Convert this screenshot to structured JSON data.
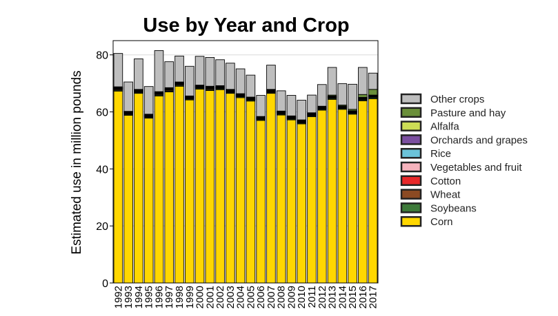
{
  "chart_data": {
    "type": "bar",
    "stacked": true,
    "title": "Use by Year and Crop",
    "xlabel": "",
    "ylabel": "Estimated use in million pounds",
    "ylim": [
      0,
      85
    ],
    "yticks": [
      0,
      20,
      40,
      60,
      80
    ],
    "grid": "horizontal",
    "legend_position": "right",
    "categories": [
      "1992",
      "1993",
      "1994",
      "1995",
      "1996",
      "1997",
      "1998",
      "1999",
      "2000",
      "2001",
      "2002",
      "2003",
      "2004",
      "2005",
      "2006",
      "2007",
      "2008",
      "2009",
      "2010",
      "2011",
      "2012",
      "2013",
      "2014",
      "2015",
      "2016",
      "2017"
    ],
    "series": [
      {
        "name": "Corn",
        "color": "#FFD700",
        "values": [
          67.3,
          58.8,
          66.5,
          57.8,
          65.6,
          67.0,
          69.0,
          64.2,
          68.0,
          67.5,
          67.8,
          66.5,
          65.0,
          63.8,
          57.0,
          66.5,
          58.9,
          57.2,
          55.8,
          58.3,
          60.6,
          64.4,
          60.9,
          59.2,
          63.9,
          64.6
        ]
      },
      {
        "name": "Soybeans",
        "color": "#3E7A3A",
        "values": [
          0.3,
          0.3,
          0.3,
          0.3,
          0.3,
          0.3,
          0.3,
          0.3,
          0.3,
          0.3,
          0.3,
          0.3,
          0.3,
          0.3,
          0.3,
          0.3,
          0.3,
          0.3,
          0.3,
          0.3,
          0.3,
          0.3,
          0.3,
          0.3,
          0.3,
          0.4
        ]
      },
      {
        "name": "Wheat",
        "color": "#8B4A23",
        "values": [
          0.3,
          0.2,
          0.2,
          0.2,
          0.3,
          0.3,
          0.3,
          0.2,
          0.2,
          0.3,
          0.2,
          0.2,
          0.2,
          0.2,
          0.2,
          0.2,
          0.2,
          0.2,
          0.2,
          0.2,
          0.2,
          0.2,
          0.2,
          0.2,
          0.2,
          0.2
        ]
      },
      {
        "name": "Cotton",
        "color": "#E8282A",
        "values": [
          0.1,
          0.1,
          0.1,
          0.1,
          0.1,
          0.1,
          0.1,
          0.1,
          0.1,
          0.1,
          0.1,
          0.1,
          0.1,
          0.1,
          0.1,
          0.1,
          0.1,
          0.1,
          0.1,
          0.1,
          0.1,
          0.1,
          0.1,
          0.1,
          0.1,
          0.1
        ]
      },
      {
        "name": "Vegetables and fruit",
        "color": "#F6B3BD",
        "values": [
          0.2,
          0.2,
          0.2,
          0.2,
          0.2,
          0.2,
          0.2,
          0.2,
          0.2,
          0.2,
          0.2,
          0.2,
          0.2,
          0.2,
          0.2,
          0.2,
          0.2,
          0.2,
          0.2,
          0.2,
          0.2,
          0.2,
          0.2,
          0.2,
          0.2,
          0.2
        ]
      },
      {
        "name": "Rice",
        "color": "#6BC3D9",
        "values": [
          0.1,
          0.1,
          0.1,
          0.1,
          0.1,
          0.1,
          0.1,
          0.1,
          0.1,
          0.1,
          0.1,
          0.1,
          0.1,
          0.1,
          0.1,
          0.1,
          0.1,
          0.1,
          0.1,
          0.1,
          0.1,
          0.1,
          0.1,
          0.1,
          0.1,
          0.1
        ]
      },
      {
        "name": "Orchards and grapes",
        "color": "#7B4FA0",
        "values": [
          0.1,
          0.1,
          0.1,
          0.1,
          0.1,
          0.1,
          0.1,
          0.1,
          0.1,
          0.1,
          0.1,
          0.1,
          0.1,
          0.1,
          0.1,
          0.1,
          0.1,
          0.1,
          0.1,
          0.1,
          0.1,
          0.1,
          0.1,
          0.1,
          0.1,
          0.1
        ]
      },
      {
        "name": "Alfalfa",
        "color": "#CCDD55",
        "values": [
          0.2,
          0.2,
          0.2,
          0.2,
          0.2,
          0.2,
          0.2,
          0.2,
          0.2,
          0.2,
          0.2,
          0.2,
          0.2,
          0.2,
          0.2,
          0.2,
          0.2,
          0.2,
          0.2,
          0.2,
          0.2,
          0.2,
          0.2,
          0.2,
          0.2,
          0.2
        ]
      },
      {
        "name": "Pasture and hay",
        "color": "#6A8F3A",
        "values": [
          0.2,
          0.2,
          0.2,
          0.2,
          0.2,
          0.2,
          0.2,
          0.2,
          0.2,
          0.2,
          0.2,
          0.2,
          0.2,
          0.2,
          0.2,
          0.2,
          0.2,
          0.2,
          0.2,
          0.2,
          0.2,
          0.3,
          0.3,
          0.5,
          1.0,
          2.0
        ]
      },
      {
        "name": "Other crops",
        "color": "#BEBEBE",
        "values": [
          11.7,
          10.3,
          10.7,
          9.7,
          14.4,
          9.1,
          9.1,
          10.4,
          10.1,
          10.1,
          9.1,
          9.2,
          8.7,
          7.7,
          7.4,
          8.5,
          7.1,
          7.2,
          6.9,
          6.2,
          7.6,
          9.7,
          7.5,
          8.8,
          9.5,
          5.7
        ]
      }
    ]
  }
}
